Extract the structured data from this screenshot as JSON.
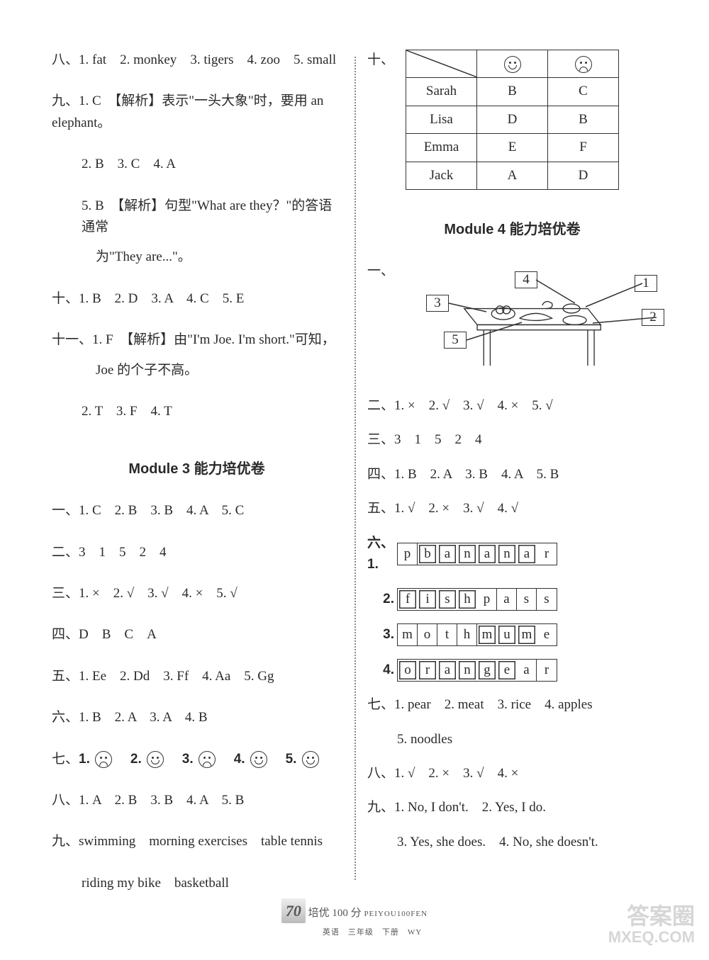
{
  "left": {
    "l8": {
      "prefix": "八、",
      "items": [
        "1. fat",
        "2. monkey",
        "3. tigers",
        "4. zoo",
        "5. small"
      ]
    },
    "l9a": {
      "prefix": "九、",
      "text": "1. C　【解析】表示\"一头大象\"时，要用 an elephant。"
    },
    "l9b": "2. B　3. C　4. A",
    "l9c": "5. B　【解析】句型\"What are they？\"的答语通常",
    "l9d": "为\"They are...\"。",
    "l10": "十、1. B　2. D　3. A　4. C　5. E",
    "l11a": "十一、1. F　【解析】由\"I'm Joe. I'm short.\"可知，",
    "l11b": "Joe 的个子不高。",
    "l11c": "2. T　3. F　4. T",
    "mod3_title": "Module 3 能力培优卷",
    "m3_1": "一、1. C　2. B　3. B　4. A　5. C",
    "m3_2": "二、3　1　5　2　4",
    "m3_3": "三、1. ×　2. √　3. √　4. ×　5. √",
    "m3_4": "四、D　B　C　A",
    "m3_5": "五、1. Ee　2. Dd　3. Ff　4. Aa　5. Gg",
    "m3_6": "六、1. B　2. A　3. A　4. B",
    "m3_7_prefix": "七、",
    "m3_7_faces": [
      "sad",
      "happy",
      "sad",
      "happy",
      "happy"
    ],
    "m3_8": "八、1. A　2. B　3. B　4. A　5. B",
    "m3_9a": "九、swimming　morning exercises　table tennis",
    "m3_9b": "riding my bike　basketball"
  },
  "right": {
    "l10_prefix": "十、",
    "table": {
      "header": [
        "",
        "happy",
        "sad"
      ],
      "rows": [
        [
          "Sarah",
          "B",
          "C"
        ],
        [
          "Lisa",
          "D",
          "B"
        ],
        [
          "Emma",
          "E",
          "F"
        ],
        [
          "Jack",
          "A",
          "D"
        ]
      ]
    },
    "mod4_title": "Module 4 能力培优卷",
    "diag_labels": [
      "1",
      "2",
      "3",
      "4",
      "5"
    ],
    "m4_2": "二、1. ×　2. √　3. √　4. ×　5. √",
    "m4_3": "三、3　1　5　2　4",
    "m4_4": "四、1. B　2. A　3. B　4. A　5. B",
    "m4_5": "五、1. √　2. ×　3. √　4. √",
    "m4_6_prefix": "六、",
    "words": [
      {
        "letters": [
          "p",
          "b",
          "a",
          "n",
          "a",
          "n",
          "a",
          "r"
        ],
        "hl": [
          1,
          2,
          3,
          4,
          5,
          6
        ]
      },
      {
        "letters": [
          "f",
          "i",
          "s",
          "h",
          "p",
          "a",
          "s",
          "s"
        ],
        "hl": [
          0,
          1,
          2,
          3
        ]
      },
      {
        "letters": [
          "m",
          "o",
          "t",
          "h",
          "m",
          "u",
          "m",
          "e"
        ],
        "hl": [
          4,
          5,
          6
        ]
      },
      {
        "letters": [
          "o",
          "r",
          "a",
          "n",
          "g",
          "e",
          "a",
          "r"
        ],
        "hl": [
          0,
          1,
          2,
          3,
          4,
          5
        ]
      }
    ],
    "m4_7a": "七、1. pear　2. meat　3. rice　4. apples",
    "m4_7b": "5. noodles",
    "m4_8": "八、1. √　2. ×　3. √　4. ×",
    "m4_9a": "九、1. No, I don't.　2. Yes, I do.",
    "m4_9b": "3. Yes, she does.　4. No, she doesn't."
  },
  "footer": {
    "page": "70",
    "title": "培优 100 分",
    "pinyin": "PEIYOU100FEN",
    "sub": "英语　三年级　下册　WY"
  },
  "watermark": {
    "l1": "答案圈",
    "l2": "MXEQ.COM"
  }
}
